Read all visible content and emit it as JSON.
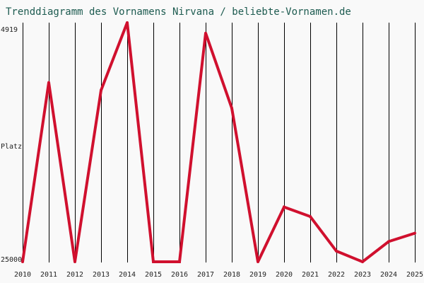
{
  "chart_data": {
    "type": "line",
    "title": "Trenddiagramm des Vornamens Nirvana / beliebte-Vornamen.de",
    "xlabel": "",
    "ylabel": "Platz",
    "y_reversed": true,
    "ylim": [
      4919,
      25000
    ],
    "y_tick_labels": [
      "4919",
      "25000"
    ],
    "x": [
      "2010",
      "2011",
      "2012",
      "2013",
      "2014",
      "2015",
      "2016",
      "2017",
      "2018",
      "2019",
      "2020",
      "2021",
      "2022",
      "2023",
      "2024",
      "2025"
    ],
    "series": [
      {
        "name": "",
        "values": [
          25000,
          9950,
          25000,
          10600,
          4919,
          25000,
          25000,
          5800,
          12100,
          25000,
          20400,
          21200,
          24100,
          25000,
          23300,
          22600
        ]
      }
    ],
    "grid": "vertical",
    "colors": {
      "line": "#d0102e",
      "grid": "#000000",
      "title": "#1d5b50",
      "background": "#f9f9f9"
    }
  }
}
